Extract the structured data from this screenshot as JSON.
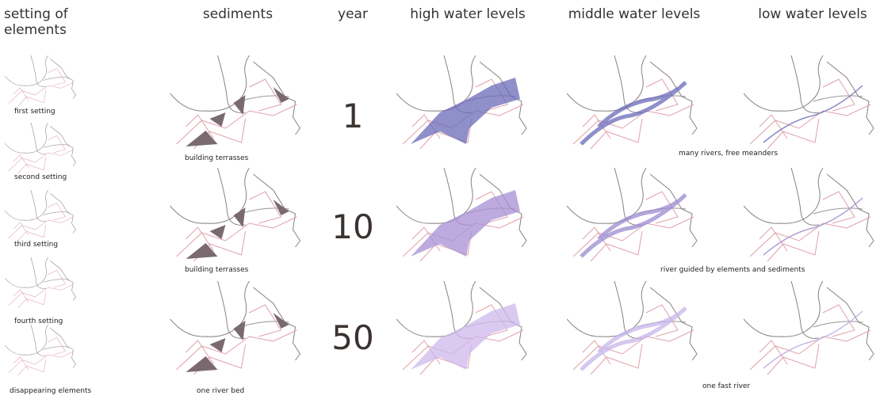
{
  "headers": [
    "setting of elements",
    "sediments",
    "year",
    "high water levels",
    "middle water levels",
    "low water levels"
  ],
  "settings": [
    "first setting",
    "second setting",
    "third setting",
    "fourth setting",
    "disappearing elements"
  ],
  "rows": [
    {
      "year": "1",
      "sediment_caption": "building terrasses",
      "water_caption": "many rivers, free meanders"
    },
    {
      "year": "10",
      "sediment_caption": "building terrasses",
      "water_caption": "river guided by elements and sediments"
    },
    {
      "year": "50",
      "sediment_caption": "one river bed",
      "water_caption": "one fast river"
    }
  ]
}
